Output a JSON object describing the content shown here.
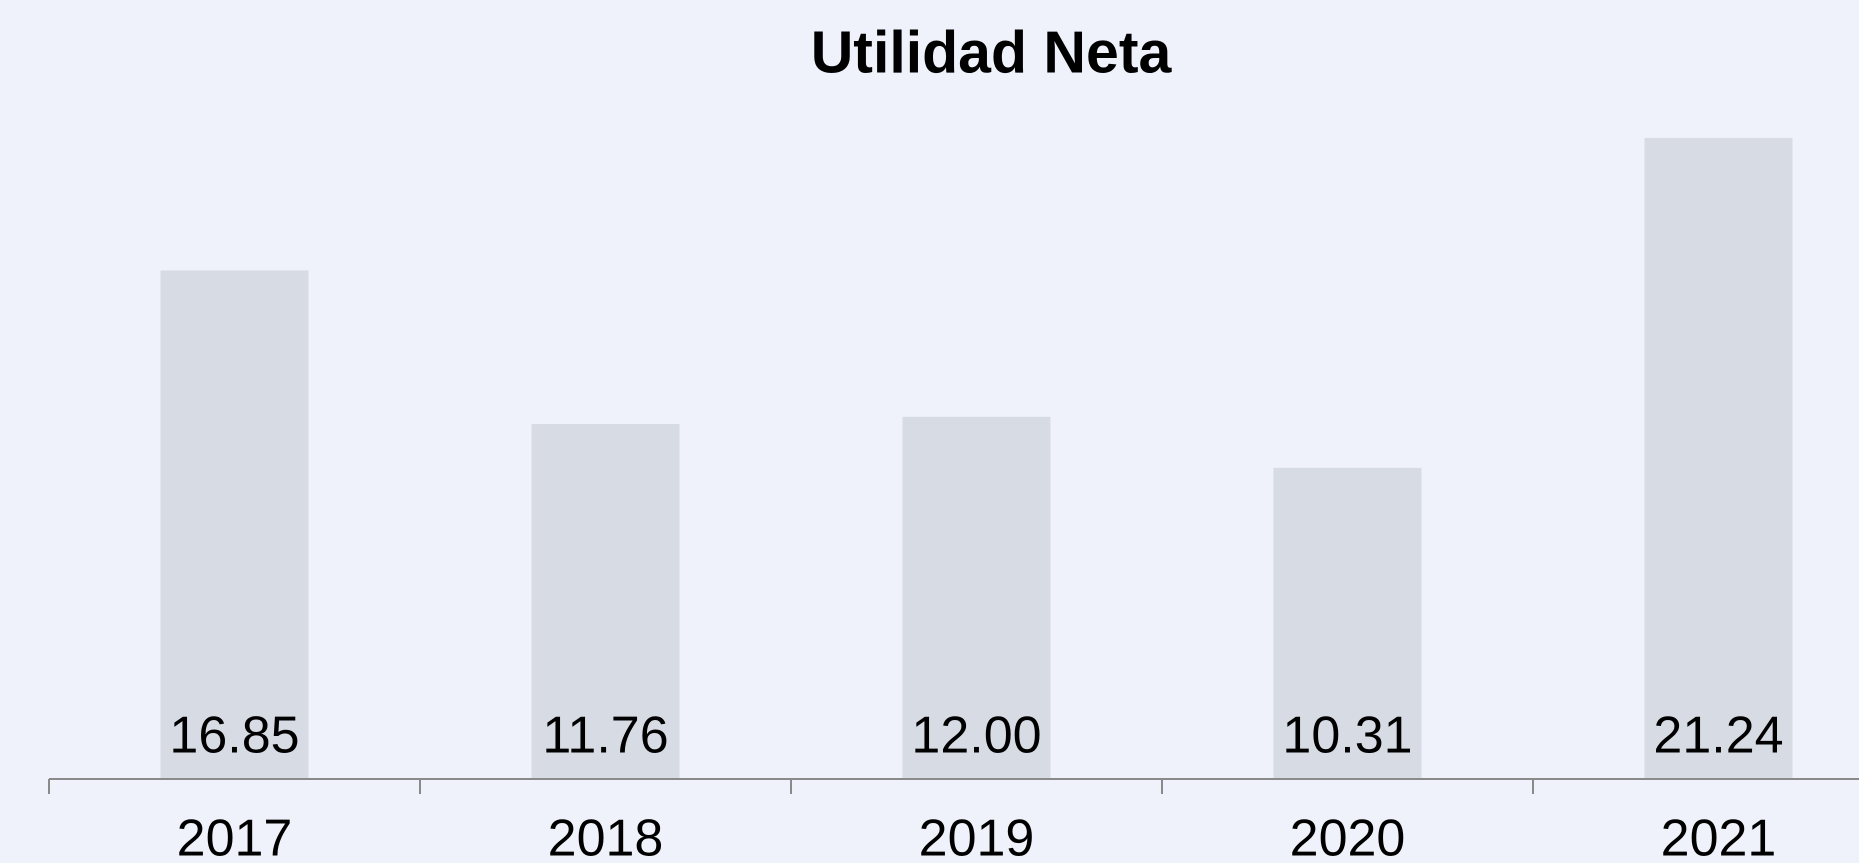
{
  "chart_data": {
    "type": "bar",
    "title": "Utilidad Neta",
    "categories": [
      "2017",
      "2018",
      "2019",
      "2020",
      "2021"
    ],
    "values": [
      16.85,
      11.76,
      12.0,
      10.31,
      21.24
    ],
    "value_labels": [
      "16.85",
      "11.76",
      "12.00",
      "10.31",
      "21.24"
    ],
    "color": "#d7dbe4",
    "ylim": [
      0,
      22
    ]
  }
}
